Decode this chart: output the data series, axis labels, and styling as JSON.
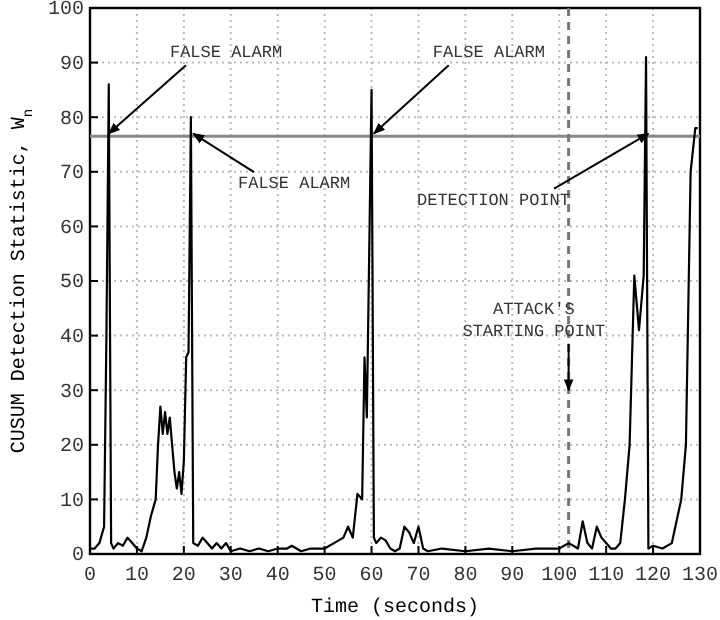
{
  "chart_data": {
    "type": "line",
    "xlabel": "Time (seconds)",
    "ylabel": "CUSUM Detection Statistic, W$_{n}$",
    "x": [
      0,
      1,
      2,
      3,
      3.5,
      4,
      4.5,
      5,
      6,
      7,
      8,
      9,
      10,
      11,
      12,
      13,
      14,
      14.5,
      15,
      15.5,
      16,
      16.5,
      17,
      17.5,
      18,
      18.5,
      19,
      19.5,
      20,
      20.5,
      21,
      21.5,
      22,
      23,
      24,
      25,
      26,
      27,
      28,
      29,
      30,
      32,
      34,
      36,
      38,
      40,
      42,
      43,
      45,
      47,
      50,
      52,
      54,
      55,
      56,
      57,
      58,
      58.5,
      59,
      60,
      60.5,
      61,
      62,
      63,
      64,
      65,
      66,
      67,
      68,
      69,
      70,
      71,
      72,
      75,
      80,
      85,
      90,
      95,
      100,
      102,
      103,
      104,
      105,
      106,
      107,
      108,
      109,
      110,
      111,
      112,
      113,
      114,
      115,
      116,
      117,
      118,
      118.5,
      119,
      120,
      122,
      124,
      126,
      127,
      128,
      129,
      129.5
    ],
    "series": [
      {
        "color": "#000000",
        "values": [
          1,
          1,
          2,
          5,
          40,
          86,
          2,
          1,
          2,
          1.5,
          3,
          2,
          1,
          0.5,
          3,
          7,
          10,
          20,
          27,
          22,
          26,
          22,
          25,
          20,
          15,
          12,
          15,
          11,
          17,
          36,
          37,
          80,
          2,
          1.5,
          3,
          2,
          1,
          2,
          1,
          2,
          0.5,
          1,
          0.5,
          1,
          0.5,
          1,
          1,
          1.5,
          0.5,
          1,
          1,
          2,
          3,
          5,
          3,
          11,
          10,
          36,
          25,
          85,
          3,
          2,
          3,
          2.5,
          1,
          0.5,
          1,
          5,
          4,
          2,
          5,
          1,
          0.5,
          1,
          0.5,
          1,
          0.5,
          1,
          1,
          2,
          1.5,
          1,
          6,
          2,
          1,
          5,
          3,
          2,
          1,
          1,
          2,
          10,
          20,
          51,
          41,
          51,
          91,
          1,
          1.5,
          1,
          2,
          10,
          20,
          70,
          78,
          78
        ]
      }
    ],
    "xlim": [
      0,
      130
    ],
    "xticks": [
      0,
      10,
      20,
      30,
      40,
      50,
      60,
      70,
      80,
      90,
      100,
      110,
      120,
      130
    ],
    "ylim": [
      0,
      100
    ],
    "yticks": [
      0,
      10,
      20,
      30,
      40,
      50,
      60,
      70,
      80,
      90,
      100
    ],
    "grid": true,
    "marker": "none",
    "line_style": "solid",
    "ref_lines": [
      {
        "axis": "y",
        "value": 76.5,
        "label": null,
        "color": "#888888",
        "line_style": "solid"
      },
      {
        "axis": "x",
        "value": 102,
        "label": null,
        "color": "#777777",
        "line_style": "dashed"
      }
    ],
    "annotations": [
      {
        "text": "FALSE ALARM",
        "x": 4,
        "y": 77
      },
      {
        "text": "FALSE ALARM",
        "x": 22,
        "y": 77
      },
      {
        "text": "FALSE ALARM",
        "x": 60.5,
        "y": 77
      },
      {
        "text": "DETECTION POINT",
        "x": 119,
        "y": 77
      },
      {
        "text": "ATTACK'S\nSTARTING POINT",
        "x": 102,
        "y": 30
      }
    ]
  }
}
